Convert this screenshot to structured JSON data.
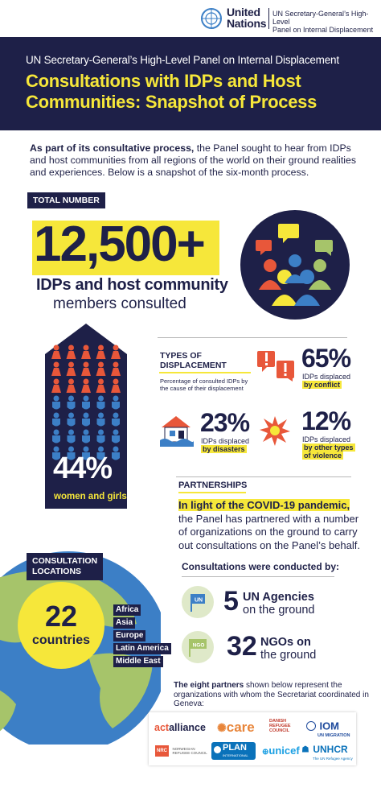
{
  "header": {
    "org_name_line1": "United",
    "org_name_line2": "Nations",
    "panel_line1": "UN Secretary-General’s High-Level",
    "panel_line2": "Panel on Internal Displacement"
  },
  "banner": {
    "subtitle": "UN Secretary-General’s High-Level Panel on Internal Displacement",
    "title_line1": "Consultations with IDPs and Host",
    "title_line2": "Communities: Snapshot of Process"
  },
  "intro": {
    "lead": "As part of its consultative process,",
    "rest": " the Panel sought to hear from IDPs and host communities from all regions of the world on their ground realities and experiences. Below is a snapshot of the six-month process."
  },
  "total": {
    "label": "TOTAL NUMBER",
    "value": "12,500+",
    "line1": "IDPs and host community",
    "line2": "members consulted"
  },
  "women": {
    "percent": "44%",
    "label": "women and girls",
    "colors": {
      "women": "#e8573a",
      "men": "#3c7fc6",
      "panel": "#1e2048"
    }
  },
  "displacement": {
    "title_line1": "TYPES OF",
    "title_line2": "DISPLACEMENT",
    "description": "Percentage of consulted IDPs by the cause of their displacement",
    "conflict": {
      "percent": "65%",
      "line1": "IDPs displaced",
      "line2": "by conflict"
    },
    "disasters": {
      "percent": "23%",
      "line1": "IDPs displaced",
      "line2": "by disasters"
    },
    "violence": {
      "percent": "12%",
      "line1": "IDPs displaced",
      "line2a": "by other types",
      "line2b": "of violence"
    }
  },
  "partnerships": {
    "label": "PARTNERSHIPS",
    "highlight": "In light of the COVID-19 pandemic,",
    "text": " the Panel has partnered with a number of organizations on the ground to carry out consultations on the Panel’s behalf."
  },
  "locations": {
    "label_line1": "CONSULTATION",
    "label_line2": "LOCATIONS",
    "count": "22",
    "count_label": "countries",
    "regions": [
      "Africa",
      "Asia",
      "Europe",
      "Latin America",
      "Middle East"
    ]
  },
  "conducted": {
    "title": "Consultations were conducted by:",
    "un": {
      "badge": "UN",
      "count": "5",
      "line1": "UN Agencies",
      "line2": "on the ground"
    },
    "ngo": {
      "badge": "NGO",
      "count": "32",
      "line1": "NGOs on",
      "line2": "the ground"
    }
  },
  "partners": {
    "lead": "The eight partners",
    "rest": " shown below represent the organizations with whom the Secretariat coordinated in Geneva:",
    "logos": {
      "actalliance_a": "act",
      "actalliance_b": "alliance",
      "care": "care",
      "drc_1": "DANISH",
      "drc_2": "REFUGEE",
      "drc_3": "COUNCIL",
      "iom": "IOM",
      "iom_sub": "UN MIGRATION",
      "nrc": "NRC",
      "nrc_1": "NORWEGIAN",
      "nrc_2": "REFUGEE COUNCIL",
      "plan": "PLAN",
      "plan_sub": "INTERNATIONAL",
      "unicef": "unicef",
      "unhcr": "UNHCR",
      "unhcr_sub": "The UN Refugee Agency"
    }
  },
  "colors": {
    "navy": "#1e2048",
    "yellow": "#f6e73a",
    "red": "#e8573a",
    "blue": "#3c7fc6",
    "green": "#a6c46a"
  }
}
